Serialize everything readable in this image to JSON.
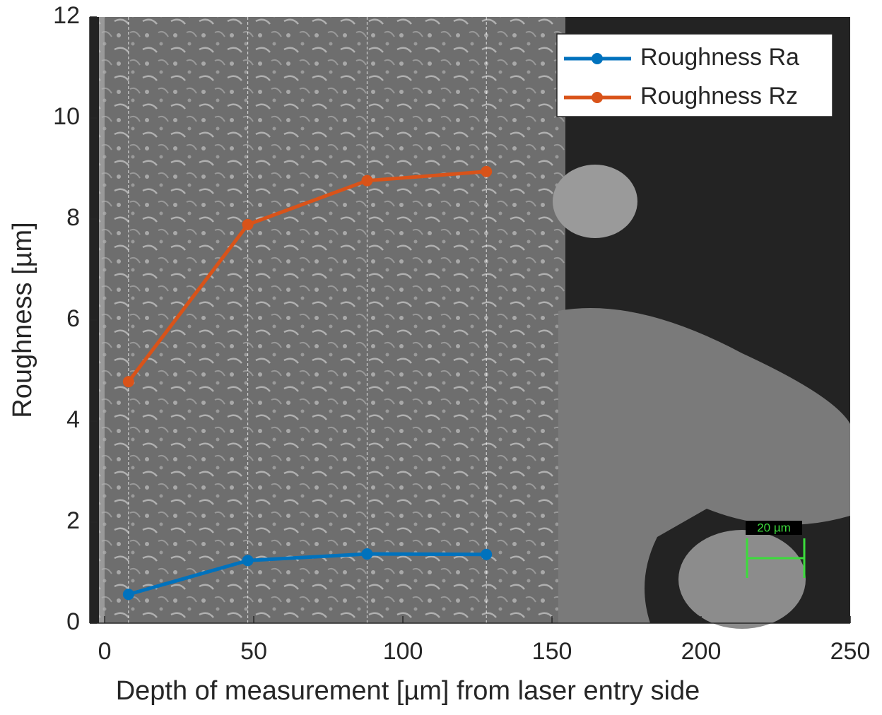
{
  "chart_data": {
    "type": "line",
    "xlabel": "Depth of measurement [µm] from laser entry side",
    "ylabel": "Roughness [µm]",
    "x": [
      8,
      48,
      88,
      128
    ],
    "series": [
      {
        "name": "Roughness Ra",
        "color": "#0072bd",
        "values": [
          0.57,
          1.24,
          1.37,
          1.36
        ]
      },
      {
        "name": "Roughness Rz",
        "color": "#d95319",
        "values": [
          4.78,
          7.89,
          8.76,
          8.94
        ]
      }
    ],
    "xlim": [
      -5,
      250
    ],
    "xticks": [
      0,
      50,
      100,
      150,
      200,
      250
    ],
    "ylim": [
      0,
      12
    ],
    "yticks": [
      0,
      2,
      4,
      6,
      8,
      10,
      12
    ],
    "legend": "upper right",
    "scale_bar_label": "20 µm"
  }
}
